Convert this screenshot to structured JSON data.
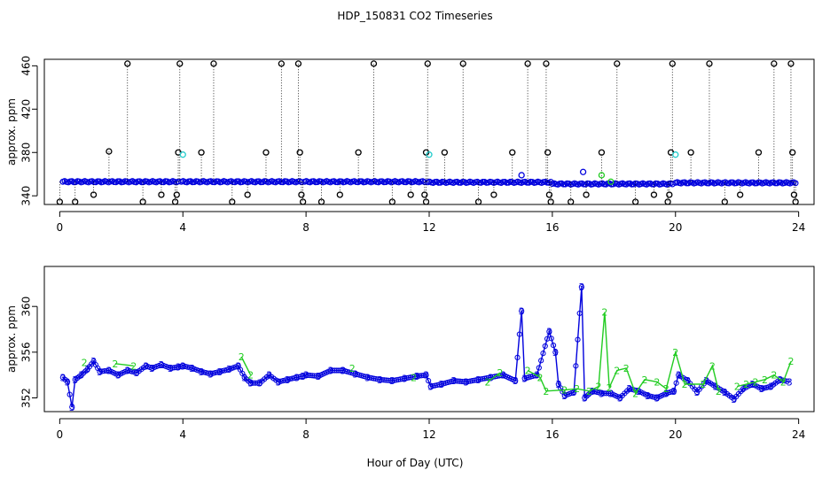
{
  "title": "HDP_150831  CO2 Timeseries",
  "xlabel": "Hour of Day (UTC)",
  "colors": {
    "black": "#000000",
    "blue": "#0000dd",
    "green": "#22cc22",
    "cyan": "#22cccc"
  },
  "chart_data": [
    {
      "type": "scatter",
      "ylabel": "approx. ppm",
      "xlim": [
        -0.5,
        24.5
      ],
      "ylim": [
        332,
        466
      ],
      "x_ticks": [
        0,
        4,
        8,
        12,
        16,
        20,
        24
      ],
      "y_ticks": [
        340,
        380,
        420,
        460
      ],
      "grid": false,
      "baseline_series": {
        "name": "",
        "segments": [
          {
            "x0": 0.1,
            "x1": 3.85,
            "y": 353
          },
          {
            "x0": 3.95,
            "x1": 7.85,
            "y": 353
          },
          {
            "x0": 7.95,
            "x1": 11.85,
            "y": 353
          },
          {
            "x0": 11.95,
            "x1": 15.95,
            "y": 352.5
          },
          {
            "x0": 16.0,
            "x1": 19.9,
            "y": 351
          },
          {
            "x0": 20.0,
            "x1": 23.9,
            "y": 352
          }
        ]
      },
      "spikes": [
        {
          "x": 0.0,
          "y": 332,
          "base": 371
        },
        {
          "x": 0.5,
          "y": 334
        },
        {
          "x": 1.1,
          "y": 341
        },
        {
          "x": 1.6,
          "y": 381
        },
        {
          "x": 2.2,
          "y": 462
        },
        {
          "x": 2.7,
          "y": 334
        },
        {
          "x": 3.3,
          "y": 341
        },
        {
          "x": 3.75,
          "y": 334
        },
        {
          "x": 3.8,
          "y": 341
        },
        {
          "x": 3.85,
          "y": 380
        },
        {
          "x": 3.9,
          "y": 462
        },
        {
          "x": 4.6,
          "y": 380
        },
        {
          "x": 5.0,
          "y": 462
        },
        {
          "x": 5.6,
          "y": 334
        },
        {
          "x": 6.1,
          "y": 341
        },
        {
          "x": 6.7,
          "y": 380
        },
        {
          "x": 7.2,
          "y": 462
        },
        {
          "x": 7.75,
          "y": 462
        },
        {
          "x": 7.8,
          "y": 380
        },
        {
          "x": 7.85,
          "y": 341
        },
        {
          "x": 7.9,
          "y": 334
        },
        {
          "x": 8.5,
          "y": 334
        },
        {
          "x": 9.1,
          "y": 341
        },
        {
          "x": 9.7,
          "y": 380
        },
        {
          "x": 10.2,
          "y": 462
        },
        {
          "x": 10.8,
          "y": 334
        },
        {
          "x": 11.4,
          "y": 341
        },
        {
          "x": 11.85,
          "y": 341
        },
        {
          "x": 11.9,
          "y": 380
        },
        {
          "x": 11.95,
          "y": 462
        },
        {
          "x": 11.9,
          "y": 334
        },
        {
          "x": 12.5,
          "y": 380
        },
        {
          "x": 13.1,
          "y": 462
        },
        {
          "x": 13.6,
          "y": 334
        },
        {
          "x": 14.1,
          "y": 341
        },
        {
          "x": 14.7,
          "y": 380
        },
        {
          "x": 15.2,
          "y": 462
        },
        {
          "x": 15.8,
          "y": 462
        },
        {
          "x": 15.85,
          "y": 380
        },
        {
          "x": 15.9,
          "y": 341
        },
        {
          "x": 15.95,
          "y": 334
        },
        {
          "x": 16.6,
          "y": 334
        },
        {
          "x": 17.1,
          "y": 341
        },
        {
          "x": 17.6,
          "y": 380
        },
        {
          "x": 18.1,
          "y": 462
        },
        {
          "x": 18.7,
          "y": 334
        },
        {
          "x": 19.3,
          "y": 341
        },
        {
          "x": 19.75,
          "y": 334
        },
        {
          "x": 19.8,
          "y": 341
        },
        {
          "x": 19.85,
          "y": 380
        },
        {
          "x": 19.9,
          "y": 462
        },
        {
          "x": 20.5,
          "y": 380
        },
        {
          "x": 21.1,
          "y": 462
        },
        {
          "x": 21.6,
          "y": 334
        },
        {
          "x": 22.1,
          "y": 341
        },
        {
          "x": 22.7,
          "y": 380
        },
        {
          "x": 23.2,
          "y": 462
        },
        {
          "x": 23.75,
          "y": 462
        },
        {
          "x": 23.8,
          "y": 380
        },
        {
          "x": 23.85,
          "y": 341
        },
        {
          "x": 23.9,
          "y": 334
        }
      ],
      "cyan_points": [
        {
          "x": 4.0,
          "y": 378
        },
        {
          "x": 12.0,
          "y": 378
        },
        {
          "x": 20.0,
          "y": 378
        },
        {
          "x": 15.0,
          "y": 359
        },
        {
          "x": 17.0,
          "y": 362
        }
      ],
      "green_points": [
        {
          "x": 17.6,
          "y": 359
        },
        {
          "x": 17.9,
          "y": 353
        }
      ]
    },
    {
      "type": "line",
      "ylabel": "approx. ppm",
      "xlim": [
        -0.5,
        24.5
      ],
      "ylim": [
        350.8,
        363.5
      ],
      "x_ticks": [
        0,
        4,
        8,
        12,
        16,
        20,
        24
      ],
      "y_ticks": [
        352,
        356,
        360
      ],
      "grid": false,
      "series": [
        {
          "name": "",
          "marker_label": "3",
          "color": "#0000dd",
          "points": [
            [
              0.1,
              353.8
            ],
            [
              0.25,
              353.4
            ],
            [
              0.4,
              351.2
            ],
            [
              0.5,
              353.6
            ],
            [
              0.7,
              354.0
            ],
            [
              0.9,
              354.5
            ],
            [
              1.1,
              355.2
            ],
            [
              1.3,
              354.3
            ],
            [
              1.6,
              354.4
            ],
            [
              1.9,
              354.0
            ],
            [
              2.2,
              354.4
            ],
            [
              2.5,
              354.2
            ],
            [
              2.8,
              354.8
            ],
            [
              3.0,
              354.6
            ],
            [
              3.3,
              354.9
            ],
            [
              3.6,
              354.6
            ],
            [
              3.85,
              354.7
            ],
            [
              4.0,
              354.8
            ],
            [
              4.3,
              354.6
            ],
            [
              4.6,
              354.3
            ],
            [
              4.9,
              354.1
            ],
            [
              5.2,
              354.3
            ],
            [
              5.5,
              354.5
            ],
            [
              5.8,
              354.8
            ],
            [
              6.0,
              353.8
            ],
            [
              6.2,
              353.3
            ],
            [
              6.5,
              353.3
            ],
            [
              6.8,
              354.0
            ],
            [
              7.1,
              353.4
            ],
            [
              7.4,
              353.6
            ],
            [
              7.7,
              353.8
            ],
            [
              7.9,
              353.9
            ],
            [
              8.0,
              354.0
            ],
            [
              8.4,
              353.9
            ],
            [
              8.8,
              354.4
            ],
            [
              9.2,
              354.4
            ],
            [
              9.6,
              354.1
            ],
            [
              10.0,
              353.8
            ],
            [
              10.4,
              353.6
            ],
            [
              10.8,
              353.5
            ],
            [
              11.2,
              353.7
            ],
            [
              11.6,
              353.9
            ],
            [
              11.9,
              354.0
            ],
            [
              12.05,
              353.0
            ],
            [
              12.4,
              353.2
            ],
            [
              12.8,
              353.5
            ],
            [
              13.2,
              353.4
            ],
            [
              13.6,
              353.6
            ],
            [
              14.0,
              353.8
            ],
            [
              14.4,
              354.0
            ],
            [
              14.8,
              353.5
            ],
            [
              15.0,
              359.6
            ],
            [
              15.1,
              353.7
            ],
            [
              15.5,
              354.0
            ],
            [
              15.9,
              357.8
            ],
            [
              16.1,
              356.0
            ],
            [
              16.2,
              353.2
            ],
            [
              16.4,
              352.2
            ],
            [
              16.7,
              352.5
            ],
            [
              16.95,
              361.7
            ],
            [
              17.05,
              352.0
            ],
            [
              17.3,
              352.6
            ],
            [
              17.6,
              352.4
            ],
            [
              17.9,
              352.4
            ],
            [
              18.2,
              352.0
            ],
            [
              18.5,
              352.8
            ],
            [
              18.8,
              352.6
            ],
            [
              19.1,
              352.2
            ],
            [
              19.4,
              352.0
            ],
            [
              19.7,
              352.4
            ],
            [
              19.95,
              352.6
            ],
            [
              20.1,
              354.0
            ],
            [
              20.4,
              353.5
            ],
            [
              20.7,
              352.5
            ],
            [
              21.0,
              353.5
            ],
            [
              21.3,
              353.0
            ],
            [
              21.6,
              352.5
            ],
            [
              21.9,
              351.9
            ],
            [
              22.2,
              352.8
            ],
            [
              22.5,
              353.2
            ],
            [
              22.8,
              352.8
            ],
            [
              23.1,
              353.0
            ],
            [
              23.4,
              353.6
            ],
            [
              23.7,
              353.4
            ]
          ]
        },
        {
          "name": "",
          "marker_label": "2",
          "color": "#22cc22",
          "points": [
            [
              0.8,
              355.1
            ],
            [
              1.8,
              355.0
            ],
            [
              2.4,
              354.8
            ],
            [
              5.9,
              355.6
            ],
            [
              6.2,
              354.0
            ],
            [
              9.5,
              354.6
            ],
            [
              11.5,
              353.8
            ],
            [
              13.9,
              353.4
            ],
            [
              14.3,
              354.2
            ],
            [
              15.2,
              354.4
            ],
            [
              15.6,
              353.8
            ],
            [
              15.8,
              352.6
            ],
            [
              16.4,
              352.7
            ],
            [
              16.8,
              352.8
            ],
            [
              17.2,
              352.6
            ],
            [
              17.5,
              353.0
            ],
            [
              17.7,
              359.5
            ],
            [
              17.85,
              352.9
            ],
            [
              18.1,
              354.4
            ],
            [
              18.4,
              354.6
            ],
            [
              18.7,
              352.4
            ],
            [
              19.0,
              353.6
            ],
            [
              19.4,
              353.4
            ],
            [
              19.7,
              352.8
            ],
            [
              20.0,
              356.0
            ],
            [
              20.3,
              353.2
            ],
            [
              20.9,
              353.2
            ],
            [
              21.2,
              354.8
            ],
            [
              21.4,
              352.6
            ],
            [
              22.0,
              353.0
            ],
            [
              22.3,
              353.2
            ],
            [
              22.6,
              353.4
            ],
            [
              22.9,
              353.6
            ],
            [
              23.2,
              354.0
            ],
            [
              23.5,
              353.4
            ],
            [
              23.75,
              355.2
            ]
          ]
        }
      ]
    }
  ]
}
